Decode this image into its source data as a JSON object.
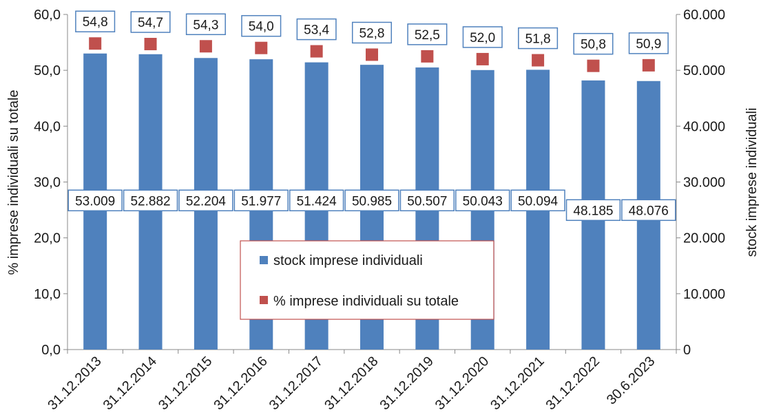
{
  "chart_data": {
    "type": "bar",
    "categories": [
      "31.12.2013",
      "31.12.2014",
      "31.12.2015",
      "31.12.2016",
      "31.12.2017",
      "31.12.2018",
      "31.12.2019",
      "31.12.2020",
      "31.12.2021",
      "31.12.2022",
      "30.6.2023"
    ],
    "series": [
      {
        "name": "stock imprese individuali",
        "type": "bar",
        "axis": "right",
        "color": "#4F81BD",
        "values": [
          53009,
          52882,
          52204,
          51977,
          51424,
          50985,
          50507,
          50043,
          50094,
          48185,
          48076
        ],
        "labels": [
          "53.009",
          "52.882",
          "52.204",
          "51.977",
          "51.424",
          "50.985",
          "50.507",
          "50.043",
          "50.094",
          "48.185",
          "48.076"
        ]
      },
      {
        "name": "% imprese individuali su totale",
        "type": "scatter",
        "axis": "left",
        "color": "#C0504D",
        "values": [
          54.8,
          54.7,
          54.3,
          54.0,
          53.4,
          52.8,
          52.5,
          52.0,
          51.8,
          50.8,
          50.9
        ],
        "labels": [
          "54,8",
          "54,7",
          "54,3",
          "54,0",
          "53,4",
          "52,8",
          "52,5",
          "52,0",
          "51,8",
          "50,8",
          "50,9"
        ]
      }
    ],
    "ylabel": "% imprese individuali su totale",
    "y2label": "stock imprese individuali",
    "ylim": [
      0,
      60
    ],
    "y2lim": [
      0,
      60000
    ],
    "yticks": [
      "0,0",
      "10,0",
      "20,0",
      "30,0",
      "40,0",
      "50,0",
      "60,0"
    ],
    "y2ticks": [
      "0",
      "10.000",
      "20.000",
      "30.000",
      "40.000",
      "50.000",
      "60.000"
    ],
    "grid": false,
    "legend": {
      "placement": "center",
      "items": [
        "stock imprese individuali",
        "% imprese individuali su totale"
      ]
    },
    "label_border_color": "#4F81BD",
    "legend_border_color": "#C0504D"
  }
}
